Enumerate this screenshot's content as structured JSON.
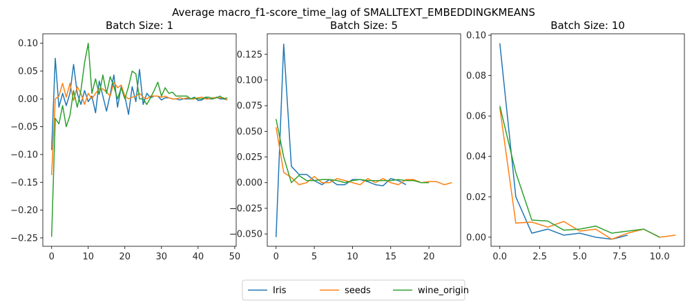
{
  "suptitle": "Average macro_f1-score_time_lag of SMALLTEXT_EMBEDDINGKMEANS",
  "colors": {
    "Iris": "#1f77b4",
    "seeds": "#ff7f0e",
    "wine_origin": "#2ca02c"
  },
  "legend": {
    "position": "bottom-center",
    "entries": [
      "Iris",
      "seeds",
      "wine_origin"
    ]
  },
  "chart_data": [
    {
      "type": "line",
      "title": "Batch Size: 1",
      "xlabel": "",
      "ylabel": "",
      "xlim": [
        -2.4,
        50.4
      ],
      "ylim": [
        -0.265,
        0.117
      ],
      "xticks": [
        0,
        10,
        20,
        30,
        40,
        50
      ],
      "xtick_labels": [
        "0",
        "10",
        "20",
        "30",
        "40",
        "50"
      ],
      "yticks": [
        -0.25,
        -0.2,
        -0.15,
        -0.1,
        -0.05,
        0.0,
        0.05,
        0.1
      ],
      "ytick_labels": [
        "−0.25",
        "−0.20",
        "−0.15",
        "−0.10",
        "−0.05",
        "0.00",
        "0.05",
        "0.10"
      ],
      "grid": false,
      "series": [
        {
          "name": "Iris",
          "x": [
            0,
            1,
            2,
            3,
            4,
            5,
            6,
            7,
            8,
            9,
            10,
            11,
            12,
            13,
            14,
            15,
            16,
            17,
            18,
            19,
            20,
            21,
            22,
            23,
            24,
            25,
            26,
            27,
            28,
            29,
            30,
            31,
            32,
            33,
            34,
            35,
            36,
            37,
            38,
            39,
            40,
            41,
            42,
            43,
            44,
            45,
            46,
            47,
            48
          ],
          "y": [
            -0.092,
            0.073,
            -0.015,
            0.01,
            -0.012,
            0.01,
            0.062,
            0.01,
            -0.01,
            0.015,
            -0.005,
            0.005,
            -0.025,
            0.032,
            0.005,
            -0.022,
            0.008,
            0.043,
            -0.015,
            0.022,
            0.005,
            -0.028,
            0.022,
            -0.005,
            0.053,
            -0.01,
            0.01,
            0.002,
            0.005,
            0.005,
            -0.002,
            0.002,
            0.002,
            0.0,
            0.0,
            -0.002,
            0.0,
            0.0,
            0.0,
            0.003,
            -0.003,
            -0.002,
            0.002,
            0.0,
            0.0,
            0.003,
            0.0,
            0.0,
            -0.002
          ]
        },
        {
          "name": "seeds",
          "x": [
            0,
            1,
            2,
            3,
            4,
            5,
            6,
            7,
            8,
            9,
            10,
            11,
            12,
            13,
            14,
            15,
            16,
            17,
            18,
            19,
            20,
            21,
            22,
            23,
            24,
            25,
            26,
            27,
            28,
            29,
            30,
            31,
            32,
            33,
            34,
            35,
            36,
            37,
            38,
            39,
            40,
            41,
            42,
            43,
            44,
            45,
            46,
            47,
            48
          ],
          "y": [
            -0.137,
            0.0,
            0.005,
            0.028,
            0.003,
            0.028,
            -0.003,
            0.022,
            0.01,
            -0.01,
            0.01,
            0.0,
            0.01,
            0.018,
            0.018,
            0.012,
            0.005,
            0.03,
            0.02,
            0.025,
            0.005,
            0.0,
            0.003,
            0.005,
            0.01,
            0.003,
            0.0,
            0.005,
            0.005,
            0.005,
            0.003,
            0.005,
            0.002,
            0.0,
            0.0,
            0.002,
            0.0,
            0.002,
            0.0,
            0.0,
            0.002,
            0.003,
            0.0,
            0.0,
            0.002,
            0.002,
            0.002,
            0.002,
            -0.002
          ]
        },
        {
          "name": "wine_origin",
          "x": [
            0,
            1,
            2,
            3,
            4,
            5,
            6,
            7,
            8,
            9,
            10,
            11,
            12,
            13,
            14,
            15,
            16,
            17,
            18,
            19,
            20,
            21,
            22,
            23,
            24,
            25,
            26,
            27,
            28,
            29,
            30,
            31,
            32,
            33,
            34,
            35,
            36,
            37,
            38,
            39,
            40,
            41,
            42,
            43,
            44,
            45,
            46,
            47,
            48
          ],
          "y": [
            -0.248,
            -0.035,
            -0.045,
            -0.012,
            -0.05,
            -0.03,
            0.015,
            -0.015,
            0.015,
            0.065,
            0.1,
            0.01,
            0.036,
            0.008,
            0.043,
            0.01,
            0.04,
            0.022,
            0.0,
            0.02,
            0.0,
            0.022,
            0.05,
            0.045,
            0.0,
            0.0,
            -0.01,
            0.002,
            0.015,
            0.03,
            0.005,
            0.02,
            0.01,
            0.012,
            0.005,
            0.005,
            0.005,
            0.005,
            0.0,
            0.002,
            0.0,
            0.0,
            0.003,
            0.003,
            0.0,
            0.002,
            0.005,
            0.0,
            0.002
          ]
        }
      ]
    },
    {
      "type": "line",
      "title": "Batch Size: 5",
      "xlabel": "",
      "ylabel": "",
      "xlim": [
        -1.15,
        24.15
      ],
      "ylim": [
        -0.062,
        0.145
      ],
      "xticks": [
        0,
        5,
        10,
        15,
        20
      ],
      "xtick_labels": [
        "0",
        "5",
        "10",
        "15",
        "20"
      ],
      "yticks": [
        -0.05,
        -0.025,
        0.0,
        0.025,
        0.05,
        0.075,
        0.1,
        0.125
      ],
      "ytick_labels": [
        "−0.050",
        "−0.025",
        "0.000",
        "0.025",
        "0.050",
        "0.075",
        "0.100",
        "0.125"
      ],
      "grid": false,
      "series": [
        {
          "name": "Iris",
          "x": [
            0,
            1,
            2,
            3,
            4,
            5,
            6,
            7,
            8,
            9,
            10,
            11,
            12,
            13,
            14,
            15,
            16,
            17
          ],
          "y": [
            -0.053,
            0.135,
            0.016,
            0.008,
            0.008,
            0.002,
            -0.002,
            0.003,
            -0.002,
            -0.002,
            0.003,
            0.003,
            0.001,
            -0.002,
            -0.003,
            0.004,
            0.002,
            -0.002
          ]
        },
        {
          "name": "seeds",
          "x": [
            0,
            1,
            2,
            3,
            4,
            5,
            6,
            7,
            8,
            9,
            10,
            11,
            12,
            13,
            14,
            15,
            16,
            17,
            18,
            19,
            20,
            21,
            22,
            23
          ],
          "y": [
            0.054,
            0.01,
            0.005,
            -0.002,
            0.0,
            0.006,
            0.0,
            0.0,
            0.004,
            0.002,
            0.0,
            -0.002,
            0.004,
            0.0,
            0.004,
            0.0,
            -0.002,
            0.003,
            0.003,
            0.0,
            0.001,
            0.001,
            -0.002,
            0.0
          ]
        },
        {
          "name": "wine_origin",
          "x": [
            0,
            1,
            2,
            3,
            4,
            5,
            6,
            7,
            8,
            9,
            10,
            11,
            12,
            13,
            14,
            15,
            16,
            17,
            18,
            19,
            20
          ],
          "y": [
            0.062,
            0.025,
            0.0,
            0.007,
            0.002,
            0.002,
            0.003,
            0.003,
            0.002,
            0.0,
            0.002,
            0.003,
            0.002,
            0.002,
            0.002,
            0.002,
            0.003,
            0.002,
            0.002,
            0.0,
            0.0
          ]
        }
      ]
    },
    {
      "type": "line",
      "title": "Batch Size: 10",
      "xlabel": "",
      "ylabel": "",
      "xlim": [
        -0.55,
        11.55
      ],
      "ylim": [
        -0.0045,
        0.1007
      ],
      "xticks": [
        0.0,
        2.5,
        5.0,
        7.5,
        10.0
      ],
      "xtick_labels": [
        "0.0",
        "2.5",
        "5.0",
        "7.5",
        "10.0"
      ],
      "yticks": [
        0.0,
        0.02,
        0.04,
        0.06,
        0.08,
        0.1
      ],
      "ytick_labels": [
        "0.00",
        "0.02",
        "0.04",
        "0.06",
        "0.08",
        "0.10"
      ],
      "grid": false,
      "series": [
        {
          "name": "Iris",
          "x": [
            0,
            1,
            2,
            3,
            4,
            5,
            6,
            7,
            8
          ],
          "y": [
            0.096,
            0.02,
            0.002,
            0.004,
            0.001,
            0.002,
            0.0,
            -0.001,
            0.001
          ]
        },
        {
          "name": "seeds",
          "x": [
            0,
            1,
            2,
            3,
            4,
            5,
            6,
            7,
            8,
            9,
            10,
            11
          ],
          "y": [
            0.064,
            0.007,
            0.0075,
            0.005,
            0.0078,
            0.003,
            0.004,
            -0.001,
            0.002,
            0.004,
            0.0,
            0.001
          ]
        },
        {
          "name": "wine_origin",
          "x": [
            0,
            1,
            2,
            3,
            4,
            5,
            6,
            7,
            8,
            9,
            10
          ],
          "y": [
            0.065,
            0.032,
            0.0085,
            0.008,
            0.0035,
            0.004,
            0.0055,
            0.002,
            0.003,
            0.004,
            0.0
          ]
        }
      ]
    }
  ]
}
